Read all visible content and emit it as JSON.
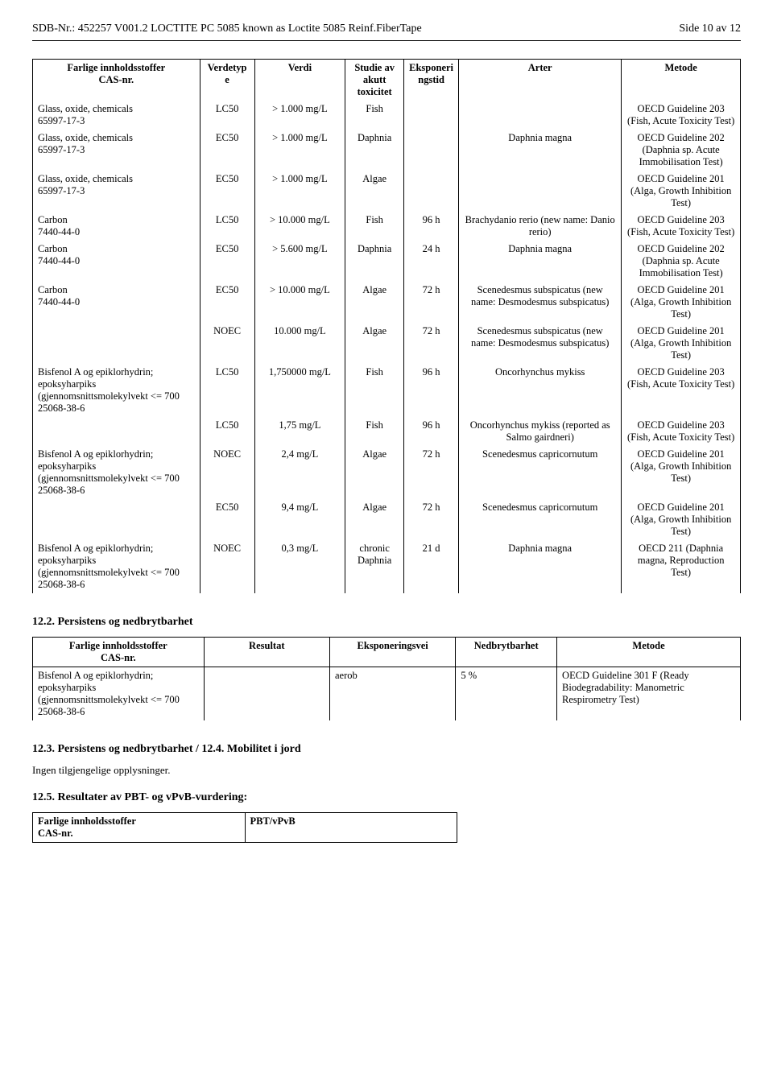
{
  "header": {
    "left": "SDB-Nr.: 452257   V001.2   LOCTITE PC 5085 known as Loctite 5085 Reinf.FiberTape",
    "right": "Side 10 av 12"
  },
  "ecotox": {
    "headers": {
      "c1a": "Farlige innholdsstoffer",
      "c1b": "CAS-nr.",
      "c2a": "Verdetyp",
      "c2b": "e",
      "c3": "Verdi",
      "c4a": "Studie av",
      "c4b": "akutt",
      "c4c": "toxicitet",
      "c5a": "Eksponeri",
      "c5b": "ngstid",
      "c6": "Arter",
      "c7": "Metode"
    },
    "rows": [
      {
        "c1": "Glass, oxide, chemicals\n65997-17-3",
        "c2": "LC50",
        "c3": "> 1.000 mg/L",
        "c4": "Fish",
        "c5": "",
        "c6": "",
        "c7": "OECD Guideline 203 (Fish, Acute Toxicity Test)"
      },
      {
        "c1": "Glass, oxide, chemicals\n65997-17-3",
        "c2": "EC50",
        "c3": "> 1.000 mg/L",
        "c4": "Daphnia",
        "c5": "",
        "c6": "Daphnia magna",
        "c7": "OECD Guideline 202 (Daphnia sp. Acute Immobilisation Test)"
      },
      {
        "c1": "Glass, oxide, chemicals\n65997-17-3",
        "c2": "EC50",
        "c3": "> 1.000 mg/L",
        "c4": "Algae",
        "c5": "",
        "c6": "",
        "c7": "OECD Guideline 201 (Alga, Growth Inhibition Test)"
      },
      {
        "c1": "Carbon\n7440-44-0",
        "c2": "LC50",
        "c3": "> 10.000 mg/L",
        "c4": "Fish",
        "c5": "96 h",
        "c6": "Brachydanio rerio (new name: Danio rerio)",
        "c7": "OECD Guideline 203 (Fish, Acute Toxicity Test)"
      },
      {
        "c1": "Carbon\n7440-44-0",
        "c2": "EC50",
        "c3": "> 5.600 mg/L",
        "c4": "Daphnia",
        "c5": "24 h",
        "c6": "Daphnia magna",
        "c7": "OECD Guideline 202 (Daphnia sp. Acute Immobilisation Test)"
      },
      {
        "c1": "Carbon\n7440-44-0",
        "c2": "EC50",
        "c3": "> 10.000 mg/L",
        "c4": "Algae",
        "c5": "72 h",
        "c6": "Scenedesmus subspicatus (new name: Desmodesmus subspicatus)",
        "c7": "OECD Guideline 201 (Alga, Growth Inhibition Test)"
      },
      {
        "c1": "",
        "c2": "NOEC",
        "c3": "10.000 mg/L",
        "c4": "Algae",
        "c5": "72 h",
        "c6": "Scenedesmus subspicatus (new name: Desmodesmus subspicatus)",
        "c7": "OECD Guideline 201 (Alga, Growth Inhibition Test)"
      },
      {
        "c1": "Bisfenol A og epiklorhydrin; epoksyharpiks (gjennomsnittsmolekylvekt <= 700\n25068-38-6",
        "c2": "LC50",
        "c3": "1,750000 mg/L",
        "c4": "Fish",
        "c5": "96 h",
        "c6": "Oncorhynchus mykiss",
        "c7": "OECD Guideline 203 (Fish, Acute Toxicity Test)"
      },
      {
        "c1": "",
        "c2": "LC50",
        "c3": "1,75 mg/L",
        "c4": "Fish",
        "c5": "96 h",
        "c6": "Oncorhynchus mykiss (reported as Salmo gairdneri)",
        "c7": "OECD Guideline 203 (Fish, Acute Toxicity Test)"
      },
      {
        "c1": "Bisfenol A og epiklorhydrin; epoksyharpiks (gjennomsnittsmolekylvekt <= 700\n25068-38-6",
        "c2": "NOEC",
        "c3": "2,4 mg/L",
        "c4": "Algae",
        "c5": "72 h",
        "c6": "Scenedesmus capricornutum",
        "c7": "OECD Guideline 201 (Alga, Growth Inhibition Test)"
      },
      {
        "c1": "",
        "c2": "EC50",
        "c3": "9,4 mg/L",
        "c4": "Algae",
        "c5": "72 h",
        "c6": "Scenedesmus capricornutum",
        "c7": "OECD Guideline 201 (Alga, Growth Inhibition Test)"
      },
      {
        "c1": "Bisfenol A og epiklorhydrin; epoksyharpiks (gjennomsnittsmolekylvekt <= 700\n25068-38-6",
        "c2": "NOEC",
        "c3": "0,3 mg/L",
        "c4": "chronic Daphnia",
        "c5": "21 d",
        "c6": "Daphnia magna",
        "c7": "OECD 211 (Daphnia magna, Reproduction Test)"
      }
    ]
  },
  "s12_2": {
    "title": "12.2. Persistens og nedbrytbarhet",
    "headers": {
      "c1a": "Farlige innholdsstoffer",
      "c1b": "CAS-nr.",
      "c2": "Resultat",
      "c3": "Eksponeringsvei",
      "c4": "Nedbrytbarhet",
      "c5": "Metode"
    },
    "row": {
      "c1": "Bisfenol A og epiklorhydrin; epoksyharpiks (gjennomsnittsmolekylvekt <= 700\n25068-38-6",
      "c2": "",
      "c3": "aerob",
      "c4": "5 %",
      "c5": "OECD Guideline 301 F (Ready Biodegradability: Manometric Respirometry Test)"
    }
  },
  "s12_3": {
    "title": "12.3. Persistens og nedbrytbarhet / 12.4. Mobilitet i jord",
    "text": "Ingen tilgjengelige opplysninger."
  },
  "s12_5": {
    "title": "12.5. Resultater av PBT- og vPvB-vurdering:",
    "headers": {
      "c1": "Farlige innholdsstoffer\nCAS-nr.",
      "c2": "PBT/vPvB"
    }
  }
}
